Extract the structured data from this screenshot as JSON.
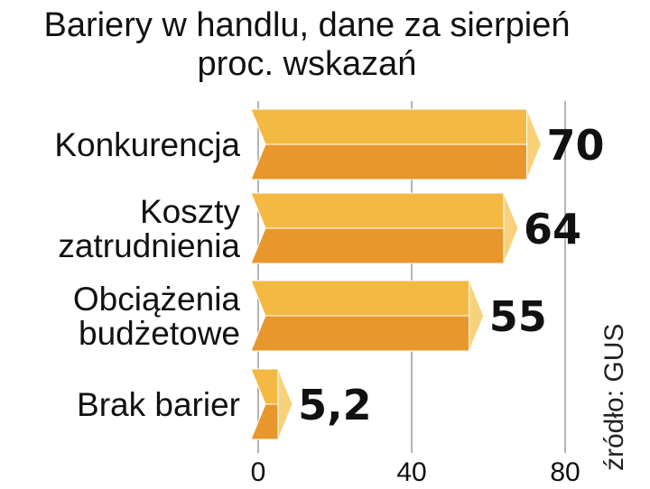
{
  "chart_data": {
    "type": "bar",
    "orientation": "horizontal",
    "title": "Bariery w handlu, dane za sierpień",
    "subtitle": "proc. wskazań",
    "categories": [
      [
        "Konkurencja"
      ],
      [
        "Koszty",
        "zatrudnienia"
      ],
      [
        "Obciążenia",
        "budżetowe"
      ],
      [
        "Brak barier"
      ]
    ],
    "values": [
      70,
      64,
      55,
      5.2
    ],
    "value_labels": [
      "70",
      "64",
      "55",
      "5,2"
    ],
    "xlim": [
      0,
      80
    ],
    "ticks": [
      0,
      40,
      80
    ],
    "tick_labels": [
      "0",
      "40",
      "80"
    ],
    "grid": true,
    "source": "źródło: GUS",
    "colors": {
      "bar_top": "#F4B942",
      "bar_bottom": "#E8972C",
      "bar_cap": "#F8D27A",
      "grid": "#9a9a9a"
    }
  }
}
